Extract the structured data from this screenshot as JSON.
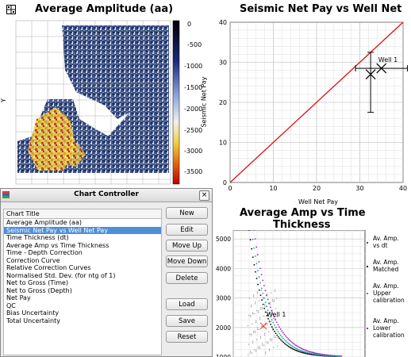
{
  "panel_map": {
    "title": "Average Amplitude (aa)",
    "ylabel": "Y",
    "colorbar_ticks": [
      "0",
      "-500",
      "-1000",
      "-1500",
      "-2000",
      "-2500",
      "-3000",
      "-3500"
    ],
    "icon": "grid-icon"
  },
  "panel_scatter": {
    "title": "Seismic Net Pay vs Well Net",
    "xlabel": "Well Net Pay",
    "ylabel": "Seismic Net Pay",
    "point_label": "Well 1"
  },
  "panel_amp_time": {
    "title_line1": "Average Amp vs Time",
    "title_line2": "Thickness",
    "point_label": "Well 1",
    "legend": [
      {
        "label_lines": [
          "Av. Amp.",
          "vs dt"
        ],
        "color": "#555555"
      },
      {
        "label_lines": [
          "Av. Amp.",
          "Matched"
        ],
        "color": "#000000"
      },
      {
        "label_lines": [
          "Av. Amp.",
          "Upper",
          "calibration"
        ],
        "color": "#1aa7a0"
      },
      {
        "label_lines": [
          "Av. Amp.",
          "Lower",
          "calibration"
        ],
        "color": "#a020c0"
      }
    ]
  },
  "chart_data": [
    {
      "type": "heatmap",
      "title": "Average Amplitude (aa)",
      "ylabel": "Y",
      "colorbar_range": [
        -3800,
        0
      ],
      "colorbar_ticks": [
        0,
        -500,
        -1000,
        -1500,
        -2000,
        -2500,
        -3000,
        -3500
      ]
    },
    {
      "type": "scatter",
      "title": "Seismic Net Pay vs Well Net",
      "xlabel": "Well Net Pay",
      "ylabel": "Seismic Net Pay",
      "xlim": [
        0,
        40
      ],
      "ylim": [
        0,
        40
      ],
      "x_ticks": [
        0,
        10,
        20,
        30,
        40
      ],
      "y_ticks": [
        0,
        10,
        20,
        30,
        40
      ],
      "reference_line": {
        "x": [
          0,
          40
        ],
        "y": [
          0,
          40
        ],
        "color": "#e01010"
      },
      "points": [
        {
          "label": "Well 1",
          "x": 35,
          "y": 28.5,
          "x_err": [
            29,
            41
          ],
          "y_err": [
            28.5,
            28.5
          ]
        },
        {
          "x": 32.5,
          "y": 27,
          "x_err": [
            32.5,
            32.5
          ],
          "y_err": [
            17.5,
            32.5
          ]
        }
      ],
      "grid": true
    },
    {
      "type": "scatter",
      "title": "Average Amp vs Time Thickness",
      "ylim": [
        1000,
        5300
      ],
      "y_ticks": [
        1000,
        2000,
        3000,
        4000,
        5000
      ],
      "series": [
        {
          "name": "Av. Amp. vs dt",
          "color": "#555555"
        },
        {
          "name": "Av. Amp. Matched",
          "color": "#000000"
        },
        {
          "name": "Av. Amp. Upper calibration",
          "color": "#1aa7a0"
        },
        {
          "name": "Av. Amp. Lower calibration",
          "color": "#a020c0"
        }
      ],
      "annotation": {
        "label": "Well 1",
        "y": 2050
      },
      "legend": "right",
      "grid": true
    }
  ],
  "controller": {
    "title": "Chart Controller",
    "column_header": "Chart Title",
    "selected_index": 1,
    "items": [
      "Average Amplitude (aa)",
      "Seismic Net Pay vs Well Net Pay",
      "Time Thickness (dt)",
      "Average Amp vs Time Thickness",
      "Time - Depth Correction",
      "Correction Curve",
      "Relative Correction Curves",
      "Normalised Std. Dev. (for ntg of 1)",
      "Net to Gross (Time)",
      "Net to Gross (Depth)",
      "Net Pay",
      "QC",
      "Bias Uncertainty",
      "Total Uncertainty"
    ],
    "buttons": {
      "new": "New",
      "edit": "Edit",
      "move_up": "Move Up",
      "move_down": "Move Down",
      "delete": "Delete",
      "load": "Load",
      "save": "Save",
      "reset": "Reset"
    },
    "close_label": "×"
  }
}
